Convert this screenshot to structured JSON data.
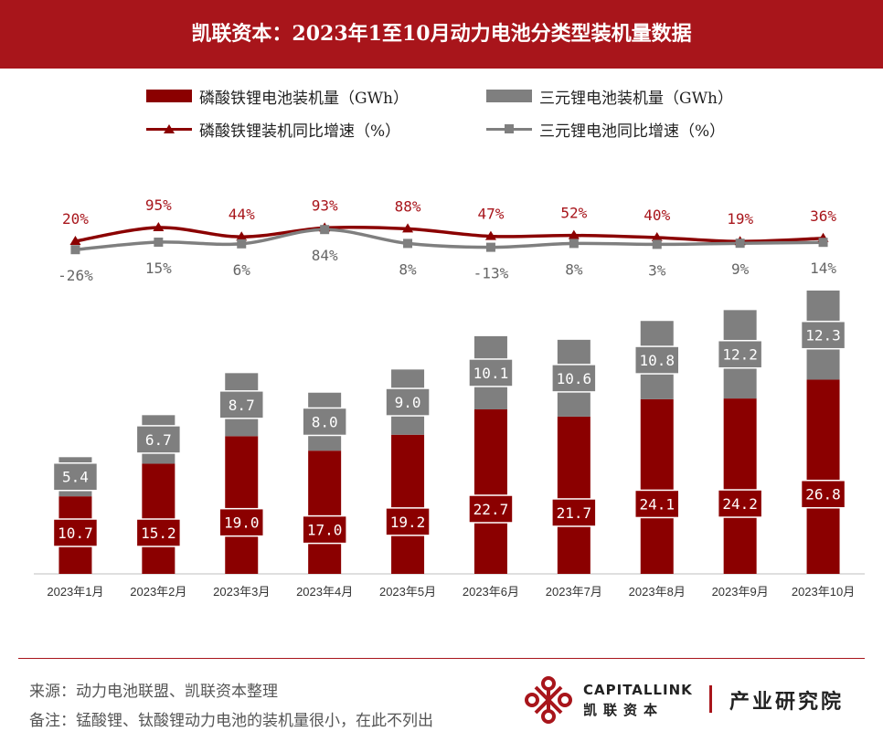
{
  "header": {
    "title": "凯联资本：2023年1至10月动力电池分类型装机量数据"
  },
  "legend": {
    "lfp_bar": "磷酸铁锂电池装机量（GWh）",
    "ncm_bar": "三元锂电池装机量（GWh）",
    "lfp_line": "磷酸铁锂装机同比增速（%）",
    "ncm_line": "三元锂电池同比增速（%）"
  },
  "colors": {
    "lfp": "#8b0000",
    "ncm": "#7f7f7f",
    "header": "#a8151b"
  },
  "chart_data": {
    "type": "bar",
    "stacked": true,
    "categories": [
      "2023年1月",
      "2023年2月",
      "2023年3月",
      "2023年4月",
      "2023年5月",
      "2023年6月",
      "2023年7月",
      "2023年8月",
      "2023年9月",
      "2023年10月"
    ],
    "series": [
      {
        "name": "磷酸铁锂电池装机量（GWh）",
        "values": [
          10.7,
          15.2,
          19.0,
          17.0,
          19.2,
          22.7,
          21.7,
          24.1,
          24.2,
          26.8
        ],
        "labels": [
          "10.7",
          "15.2",
          "19.0",
          "17.0",
          "19.2",
          "22.7",
          "21.7",
          "24.1",
          "24.2",
          "26.8"
        ]
      },
      {
        "name": "三元锂电池装机量（GWh）",
        "values": [
          5.4,
          6.7,
          8.7,
          8.0,
          9.0,
          10.1,
          10.6,
          10.8,
          12.2,
          12.3
        ],
        "labels": [
          "5.4",
          "6.7",
          "8.7",
          "8.0",
          "9.0",
          "10.1",
          "10.6",
          "10.8",
          "12.2",
          "12.3"
        ]
      }
    ],
    "lines": [
      {
        "name": "磷酸铁锂装机同比增速（%）",
        "values": [
          20,
          95,
          44,
          93,
          88,
          47,
          52,
          40,
          19,
          36
        ],
        "labels": [
          "20%",
          "95%",
          "44%",
          "93%",
          "88%",
          "47%",
          "52%",
          "40%",
          "19%",
          "36%"
        ]
      },
      {
        "name": "三元锂电池同比增速（%）",
        "values": [
          -26,
          15,
          6,
          84,
          8,
          -13,
          8,
          3,
          9,
          14
        ],
        "labels": [
          "-26%",
          "15%",
          "6%",
          "84%",
          "8%",
          "-13%",
          "8%",
          "3%",
          "9%",
          "14%"
        ]
      }
    ]
  },
  "footer": {
    "source": "来源：动力电池联盟、凯联资本整理",
    "note": "备注：锰酸锂、钛酸锂动力电池的装机量很小，在此不列出"
  },
  "brand": {
    "english": "CAPITALLINK",
    "chinese": "凯联资本",
    "institute": "产业研究院"
  }
}
